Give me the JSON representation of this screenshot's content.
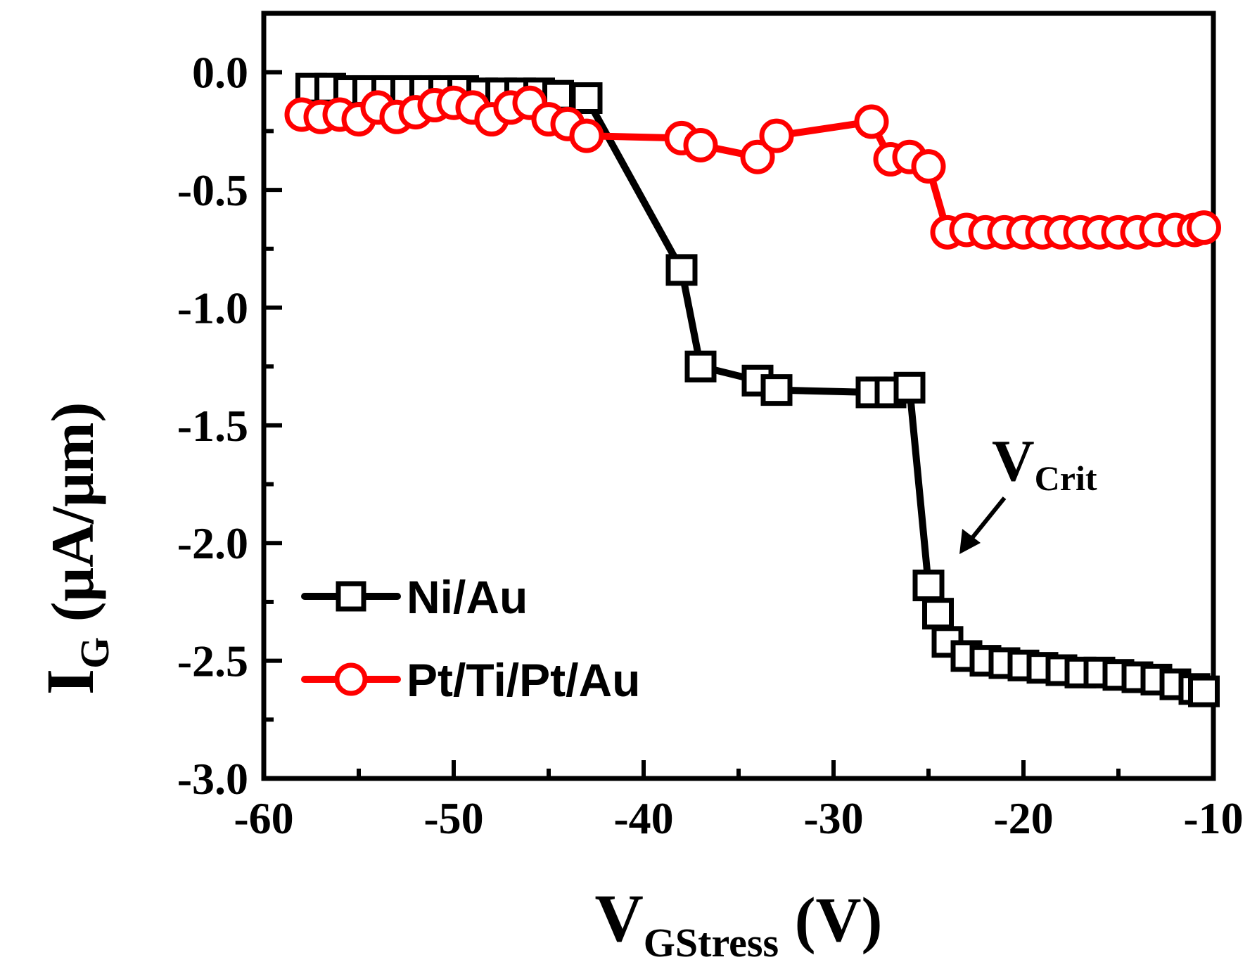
{
  "chart_data": {
    "type": "line",
    "xlabel": {
      "main": "V",
      "sub": "GStress",
      "unit": " (V)"
    },
    "ylabel": {
      "main": "I",
      "sub": "G",
      "unit": " (μA/μm)"
    },
    "xlim": [
      -60,
      -10
    ],
    "ylim": [
      -3.0,
      0.25
    ],
    "xticks": [
      -60,
      -50,
      -40,
      -30,
      -20,
      -10
    ],
    "xtick_labels": [
      "-60",
      "-50",
      "-40",
      "-30",
      "-20",
      "-10"
    ],
    "yticks": [
      0.0,
      -0.5,
      -1.0,
      -1.5,
      -2.0,
      -2.5,
      -3.0
    ],
    "ytick_labels": [
      "0.0",
      "-0.5",
      "-1.0",
      "-1.5",
      "-2.0",
      "-2.5",
      "-3.0"
    ],
    "series": [
      {
        "name": "Ni/Au",
        "color": "#000000",
        "marker": "square",
        "x": [
          -57.5,
          -56.5,
          -55.5,
          -54.5,
          -53.5,
          -52.5,
          -51.5,
          -50.5,
          -49.5,
          -48.5,
          -47.5,
          -46.5,
          -45.5,
          -44.5,
          -43,
          -38,
          -37,
          -34,
          -33,
          -28,
          -27,
          -26,
          -25,
          -24.5,
          -24,
          -23,
          -22,
          -21,
          -20,
          -19,
          -18,
          -17,
          -16,
          -15,
          -14,
          -13,
          -12,
          -11,
          -10.5
        ],
        "y": [
          -0.07,
          -0.07,
          -0.08,
          -0.08,
          -0.08,
          -0.08,
          -0.08,
          -0.08,
          -0.08,
          -0.09,
          -0.09,
          -0.09,
          -0.09,
          -0.1,
          -0.11,
          -0.84,
          -1.25,
          -1.31,
          -1.35,
          -1.36,
          -1.36,
          -1.34,
          -2.18,
          -2.3,
          -2.42,
          -2.48,
          -2.5,
          -2.51,
          -2.52,
          -2.53,
          -2.54,
          -2.55,
          -2.55,
          -2.56,
          -2.57,
          -2.58,
          -2.6,
          -2.62,
          -2.63
        ]
      },
      {
        "name": "Pt/Ti/Pt/Au",
        "color": "#ff0000",
        "marker": "circle",
        "x": [
          -58,
          -57,
          -56,
          -55,
          -54,
          -53,
          -52,
          -51,
          -50,
          -49,
          -48,
          -47,
          -46,
          -45,
          -44,
          -43,
          -38,
          -37,
          -34,
          -33,
          -28,
          -27,
          -26,
          -25,
          -24,
          -23,
          -22,
          -21,
          -20,
          -19,
          -18,
          -17,
          -16,
          -15,
          -14,
          -13,
          -12,
          -11,
          -10.5
        ],
        "y": [
          -0.18,
          -0.19,
          -0.18,
          -0.2,
          -0.15,
          -0.19,
          -0.17,
          -0.14,
          -0.13,
          -0.15,
          -0.2,
          -0.15,
          -0.13,
          -0.2,
          -0.22,
          -0.27,
          -0.28,
          -0.31,
          -0.36,
          -0.27,
          -0.21,
          -0.37,
          -0.36,
          -0.4,
          -0.68,
          -0.67,
          -0.68,
          -0.68,
          -0.68,
          -0.68,
          -0.68,
          -0.68,
          -0.68,
          -0.68,
          -0.68,
          -0.67,
          -0.67,
          -0.67,
          -0.66
        ]
      }
    ],
    "legend": {
      "position": "bottom-left",
      "labels": [
        "Ni/Au",
        "Pt/Ti/Pt/Au"
      ]
    },
    "annotation": {
      "main": "V",
      "sub": "Crit",
      "points_to": {
        "x": -24,
        "y": -2.02
      }
    }
  }
}
